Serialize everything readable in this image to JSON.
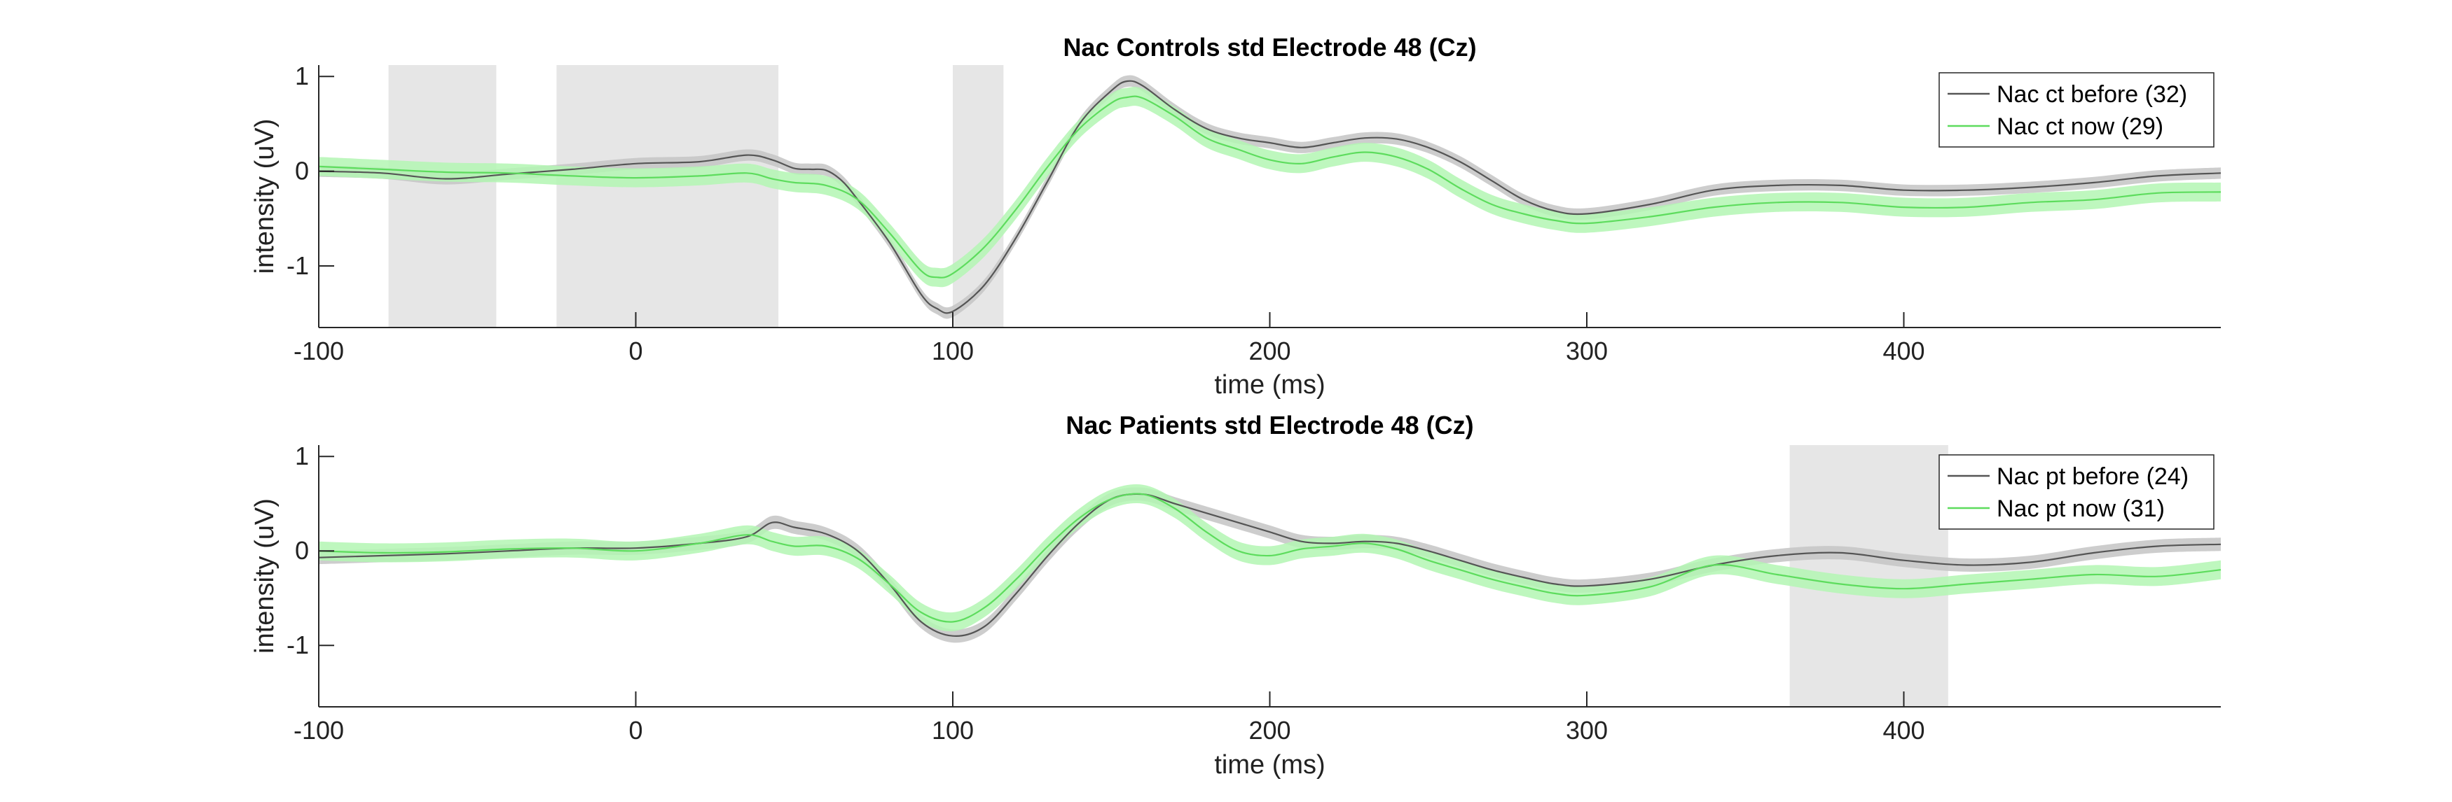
{
  "chart_data": [
    {
      "type": "line",
      "title": "Nac Controls std Electrode 48 (Cz)",
      "xlabel": "time (ms)",
      "ylabel": "intensity (uV)",
      "xlim": [
        -100,
        500
      ],
      "ylim": [
        -1.65,
        1.12
      ],
      "xticks": [
        -100,
        0,
        100,
        200,
        300,
        400
      ],
      "yticks": [
        -1,
        0,
        1
      ],
      "grid": false,
      "legend_position": "top-right",
      "significance_bands": [
        [
          -78,
          -44
        ],
        [
          -25,
          45
        ],
        [
          100,
          116
        ]
      ],
      "series": [
        {
          "name": "Nac ct before (32)",
          "color": "#555555",
          "band_color": "#c4c4c4",
          "x": [
            -100,
            -80,
            -60,
            -40,
            -20,
            0,
            20,
            35,
            43,
            50,
            55,
            60,
            65,
            70,
            80,
            90,
            95,
            100,
            110,
            120,
            130,
            140,
            150,
            155,
            160,
            170,
            180,
            190,
            200,
            210,
            220,
            230,
            240,
            250,
            260,
            270,
            280,
            290,
            300,
            320,
            340,
            360,
            380,
            400,
            420,
            440,
            460,
            480,
            500
          ],
          "values": [
            0.0,
            -0.02,
            -0.08,
            -0.03,
            0.02,
            0.08,
            0.1,
            0.17,
            0.12,
            0.03,
            0.02,
            0.01,
            -0.1,
            -0.3,
            -0.75,
            -1.3,
            -1.45,
            -1.48,
            -1.2,
            -0.7,
            -0.1,
            0.5,
            0.85,
            0.95,
            0.9,
            0.65,
            0.45,
            0.35,
            0.3,
            0.25,
            0.3,
            0.35,
            0.34,
            0.25,
            0.1,
            -0.1,
            -0.3,
            -0.42,
            -0.45,
            -0.35,
            -0.2,
            -0.15,
            -0.15,
            -0.2,
            -0.2,
            -0.17,
            -0.12,
            -0.05,
            -0.02
          ],
          "band_width": 0.06
        },
        {
          "name": "Nac ct now (29)",
          "color": "#5ddc5d",
          "band_color": "#b3f6b3",
          "x": [
            -100,
            -80,
            -60,
            -40,
            -20,
            0,
            20,
            35,
            43,
            50,
            60,
            70,
            80,
            90,
            95,
            100,
            110,
            120,
            130,
            140,
            150,
            155,
            160,
            170,
            180,
            190,
            200,
            210,
            220,
            230,
            240,
            250,
            260,
            270,
            280,
            290,
            300,
            320,
            340,
            360,
            380,
            400,
            420,
            440,
            460,
            480,
            500
          ],
          "values": [
            0.05,
            0.02,
            -0.01,
            -0.02,
            -0.05,
            -0.07,
            -0.05,
            -0.02,
            -0.08,
            -0.12,
            -0.15,
            -0.3,
            -0.65,
            -1.05,
            -1.12,
            -1.08,
            -0.8,
            -0.4,
            0.05,
            0.45,
            0.72,
            0.78,
            0.77,
            0.58,
            0.35,
            0.23,
            0.12,
            0.08,
            0.15,
            0.2,
            0.15,
            0.02,
            -0.18,
            -0.35,
            -0.45,
            -0.52,
            -0.55,
            -0.48,
            -0.38,
            -0.33,
            -0.33,
            -0.38,
            -0.38,
            -0.33,
            -0.3,
            -0.23,
            -0.22
          ],
          "band_width": 0.1
        }
      ]
    },
    {
      "type": "line",
      "title": "Nac Patients std Electrode 48 (Cz)",
      "xlabel": "time (ms)",
      "ylabel": "intensity (uV)",
      "xlim": [
        -100,
        500
      ],
      "ylim": [
        -1.65,
        1.12
      ],
      "xticks": [
        -100,
        0,
        100,
        200,
        300,
        400
      ],
      "yticks": [
        -1,
        0,
        1
      ],
      "grid": false,
      "legend_position": "top-right",
      "significance_bands": [
        [
          364,
          414
        ]
      ],
      "series": [
        {
          "name": "Nac pt before (24)",
          "color": "#555555",
          "band_color": "#c4c4c4",
          "x": [
            -100,
            -80,
            -60,
            -40,
            -20,
            0,
            20,
            35,
            43,
            50,
            60,
            70,
            80,
            90,
            100,
            110,
            120,
            130,
            140,
            150,
            160,
            170,
            180,
            190,
            200,
            210,
            220,
            230,
            240,
            250,
            260,
            270,
            280,
            290,
            300,
            320,
            340,
            360,
            380,
            400,
            420,
            440,
            460,
            480,
            500
          ],
          "values": [
            -0.07,
            -0.05,
            -0.03,
            0.0,
            0.03,
            0.03,
            0.08,
            0.15,
            0.3,
            0.25,
            0.18,
            0.0,
            -0.35,
            -0.75,
            -0.9,
            -0.8,
            -0.45,
            -0.05,
            0.3,
            0.55,
            0.6,
            0.5,
            0.4,
            0.3,
            0.2,
            0.1,
            0.08,
            0.1,
            0.08,
            0.0,
            -0.1,
            -0.2,
            -0.28,
            -0.35,
            -0.37,
            -0.3,
            -0.15,
            -0.05,
            -0.02,
            -0.1,
            -0.15,
            -0.12,
            -0.02,
            0.05,
            0.07
          ],
          "band_width": 0.07
        },
        {
          "name": "Nac pt now (31)",
          "color": "#5ddc5d",
          "band_color": "#b3f6b3",
          "x": [
            -100,
            -80,
            -60,
            -40,
            -20,
            0,
            20,
            35,
            43,
            50,
            60,
            70,
            80,
            90,
            100,
            110,
            120,
            130,
            140,
            150,
            160,
            170,
            180,
            190,
            200,
            210,
            220,
            230,
            240,
            250,
            260,
            270,
            280,
            290,
            300,
            320,
            340,
            360,
            380,
            400,
            420,
            440,
            460,
            480,
            500
          ],
          "values": [
            0.0,
            -0.02,
            -0.01,
            0.02,
            0.03,
            0.0,
            0.08,
            0.17,
            0.1,
            0.05,
            0.05,
            -0.08,
            -0.35,
            -0.65,
            -0.75,
            -0.6,
            -0.3,
            0.05,
            0.35,
            0.55,
            0.6,
            0.45,
            0.2,
            0.0,
            -0.05,
            0.02,
            0.05,
            0.08,
            0.02,
            -0.1,
            -0.2,
            -0.3,
            -0.38,
            -0.45,
            -0.47,
            -0.38,
            -0.15,
            -0.25,
            -0.35,
            -0.4,
            -0.35,
            -0.3,
            -0.25,
            -0.27,
            -0.2
          ],
          "band_width": 0.1
        }
      ]
    }
  ]
}
